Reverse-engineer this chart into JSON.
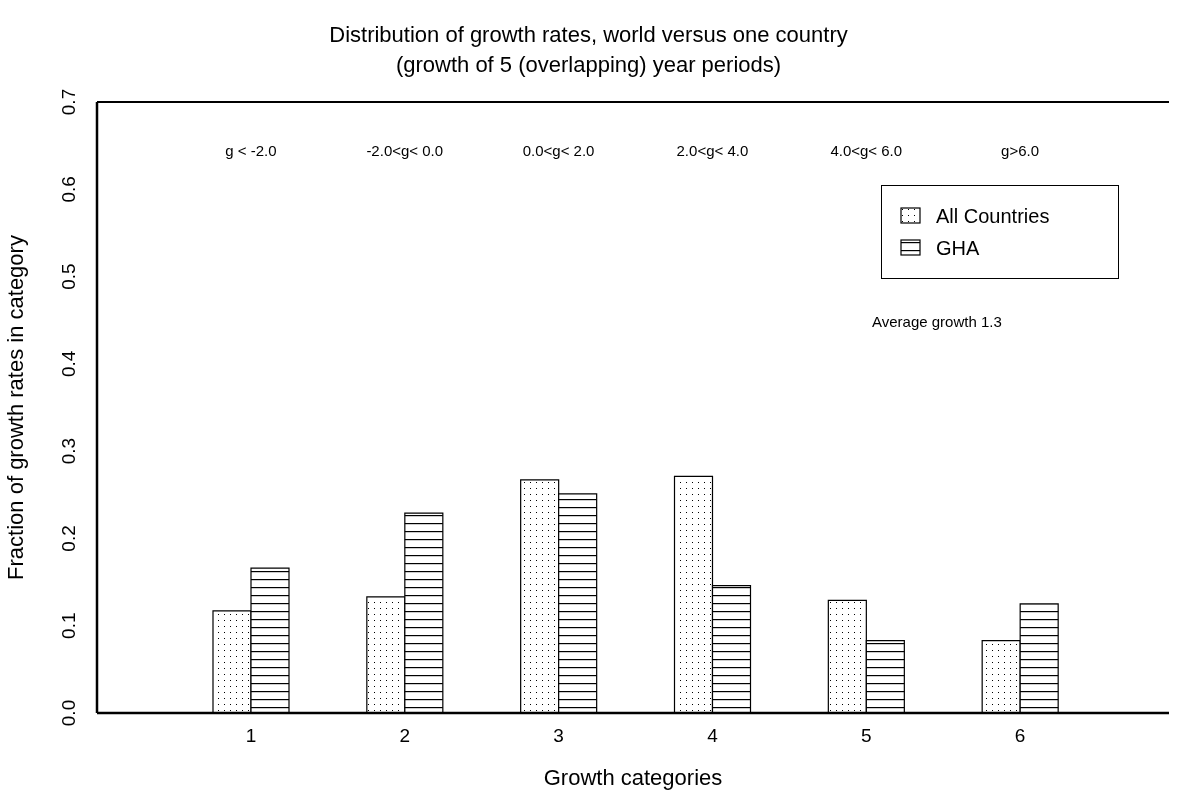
{
  "chart_data": {
    "type": "bar",
    "title": "Distribution of growth rates, world versus one country",
    "subtitle": "(growth of 5 (overlapping) year periods)",
    "xlabel": "Growth categories",
    "ylabel": "Fraction of growth rates in category",
    "categories": [
      "1",
      "2",
      "3",
      "4",
      "5",
      "6"
    ],
    "series": [
      {
        "name": "All Countries",
        "color": "#000000",
        "values": [
          0.117,
          0.133,
          0.267,
          0.271,
          0.129,
          0.083
        ]
      },
      {
        "name": "GHA",
        "color": "#000000",
        "values": [
          0.166,
          0.229,
          0.251,
          0.146,
          0.083,
          0.125
        ]
      }
    ],
    "ylim": [
      0,
      0.7
    ],
    "yticks": [
      {
        "value": 0,
        "label": "0.0"
      },
      0.1,
      0.2,
      0.3,
      0.4,
      0.5,
      0.6,
      0.7
    ],
    "legend": "top right",
    "annotations": [
      "g < -2.0",
      "-2.0<g< 0.0",
      "0.0<g< 2.0",
      "2.0<g< 4.0",
      "4.0<g< 6.0",
      "g>6.0",
      "Average growth 1.3"
    ]
  }
}
